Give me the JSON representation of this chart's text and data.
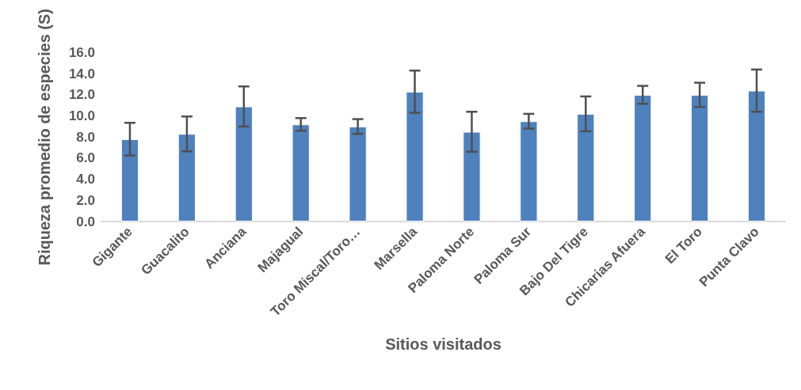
{
  "chart_data": {
    "type": "bar",
    "xlabel": "Sitios visitados",
    "ylabel": "Riqueza promedio de especies (S)",
    "categories": [
      "Gigante",
      "Guacalito",
      "Anciana",
      "Majagual",
      "Toro Miscal/Toro…",
      "Marsella",
      "Paloma Norte",
      "Paloma Sur",
      "Bajo Del Tigre",
      "Chicarias Afuera",
      "El Toro",
      "Punta Clavo"
    ],
    "values": [
      7.8,
      8.3,
      10.9,
      9.2,
      9.0,
      12.3,
      8.5,
      9.5,
      10.2,
      12.0,
      12.0,
      12.4
    ],
    "errors": [
      1.55,
      1.65,
      1.9,
      0.6,
      0.7,
      2.0,
      1.9,
      0.7,
      1.65,
      0.85,
      1.15,
      2.0
    ],
    "color": "#4f81bd",
    "ylim": [
      0,
      16
    ],
    "yticks": [
      {
        "value": 0,
        "label": "0.0"
      },
      {
        "value": 2,
        "label": "2.0"
      },
      {
        "value": 4,
        "label": "4.0"
      },
      {
        "value": 6,
        "label": "6.0"
      },
      {
        "value": 8,
        "label": "8.0"
      },
      {
        "value": 10,
        "label": "10.0"
      },
      {
        "value": 12,
        "label": "12.0"
      },
      {
        "value": 14,
        "label": "14.0"
      },
      {
        "value": 16,
        "label": "16.0"
      }
    ],
    "grid": false
  }
}
